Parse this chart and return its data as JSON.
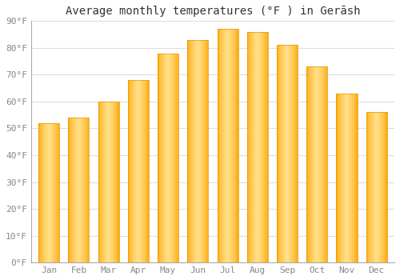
{
  "title": "Average monthly temperatures (°F ) in Gerāsh",
  "months": [
    "Jan",
    "Feb",
    "Mar",
    "Apr",
    "May",
    "Jun",
    "Jul",
    "Aug",
    "Sep",
    "Oct",
    "Nov",
    "Dec"
  ],
  "values": [
    52,
    54,
    60,
    68,
    78,
    83,
    87,
    86,
    81,
    73,
    63,
    56
  ],
  "ylim": [
    0,
    90
  ],
  "yticks": [
    0,
    10,
    20,
    30,
    40,
    50,
    60,
    70,
    80,
    90
  ],
  "background_color": "#ffffff",
  "plot_bg_color": "#ffffff",
  "bar_color_main": "#FFA500",
  "bar_color_light": "#FFE08A",
  "bar_edge_color": "#E89400",
  "grid_color": "#dddddd",
  "title_fontsize": 10,
  "tick_fontsize": 8,
  "tick_color": "#888888",
  "bar_width": 0.7
}
